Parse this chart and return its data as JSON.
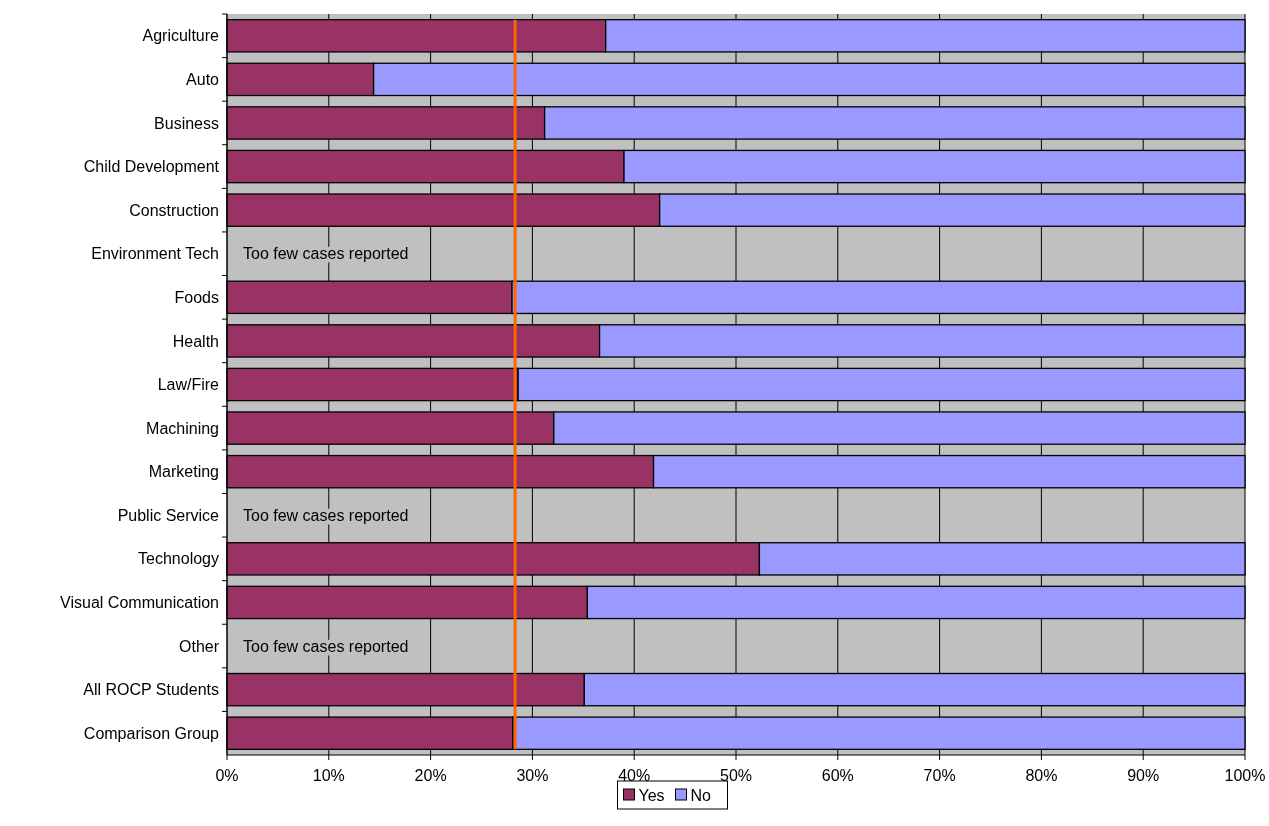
{
  "chart_data": {
    "type": "bar",
    "orientation": "horizontal",
    "stacked": true,
    "categories": [
      "Agriculture",
      "Auto",
      "Business",
      "Child Development",
      "Construction",
      "Environment Tech",
      "Foods",
      "Health",
      "Law/Fire",
      "Machining",
      "Marketing",
      "Public Service",
      "Technology",
      "Visual Communication",
      "Other",
      "All ROCP Students",
      "Comparison Group"
    ],
    "series": [
      {
        "name": "Yes",
        "color": "#993366",
        "values": [
          37.2,
          14.4,
          31.2,
          39.0,
          42.5,
          null,
          28.0,
          36.6,
          28.6,
          32.1,
          41.9,
          null,
          52.3,
          35.4,
          null,
          35.1,
          28.1
        ]
      },
      {
        "name": "No",
        "color": "#9999ff",
        "values": [
          62.8,
          85.6,
          68.8,
          61.0,
          57.5,
          null,
          72.0,
          63.4,
          71.4,
          67.9,
          58.1,
          null,
          47.7,
          64.6,
          null,
          64.9,
          71.9
        ]
      }
    ],
    "xlim": [
      0,
      100
    ],
    "xticks": [
      {
        "value": 0,
        "label": "0%"
      },
      {
        "value": 10,
        "label": "10%"
      },
      {
        "value": 20,
        "label": "20%"
      },
      {
        "value": 30,
        "label": "30%"
      },
      {
        "value": 40,
        "label": "40%"
      },
      {
        "value": 50,
        "label": "50%"
      },
      {
        "value": 60,
        "label": "60%"
      },
      {
        "value": 70,
        "label": "70%"
      },
      {
        "value": 80,
        "label": "80%"
      },
      {
        "value": 90,
        "label": "90%"
      },
      {
        "value": 100,
        "label": "100%"
      }
    ],
    "grid": "x",
    "legend": "bottom",
    "ref_lines": [
      {
        "axis": "x",
        "value": 28.3,
        "color": "#ff6600"
      }
    ],
    "annotations": [
      "Too few cases reported",
      "Too few cases reported",
      "Too few cases reported"
    ]
  }
}
